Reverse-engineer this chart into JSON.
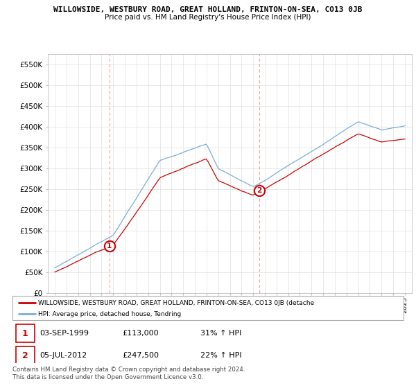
{
  "title1": "WILLOWSIDE, WESTBURY ROAD, GREAT HOLLAND, FRINTON-ON-SEA, CO13 0JB",
  "title2": "Price paid vs. HM Land Registry's House Price Index (HPI)",
  "ylim": [
    0,
    575000
  ],
  "yticks": [
    0,
    50000,
    100000,
    150000,
    200000,
    250000,
    300000,
    350000,
    400000,
    450000,
    500000,
    550000
  ],
  "ytick_labels": [
    "£0",
    "£50K",
    "£100K",
    "£150K",
    "£200K",
    "£250K",
    "£300K",
    "£350K",
    "£400K",
    "£450K",
    "£500K",
    "£550K"
  ],
  "sale1_date": 1999.67,
  "sale1_price": 113000,
  "sale2_date": 2012.5,
  "sale2_price": 247500,
  "legend_line1": "WILLOWSIDE, WESTBURY ROAD, GREAT HOLLAND, FRINTON-ON-SEA, CO13 0JB (detache",
  "legend_line2": "HPI: Average price, detached house, Tendring",
  "table_row1": [
    "1",
    "03-SEP-1999",
    "£113,000",
    "31% ↑ HPI"
  ],
  "table_row2": [
    "2",
    "05-JUL-2012",
    "£247,500",
    "22% ↑ HPI"
  ],
  "footnote": "Contains HM Land Registry data © Crown copyright and database right 2024.\nThis data is licensed under the Open Government Licence v3.0.",
  "line_color_red": "#cc0000",
  "line_color_blue": "#7aadd4",
  "vline_color": "#ff9999",
  "grid_color": "#e0e0e0"
}
